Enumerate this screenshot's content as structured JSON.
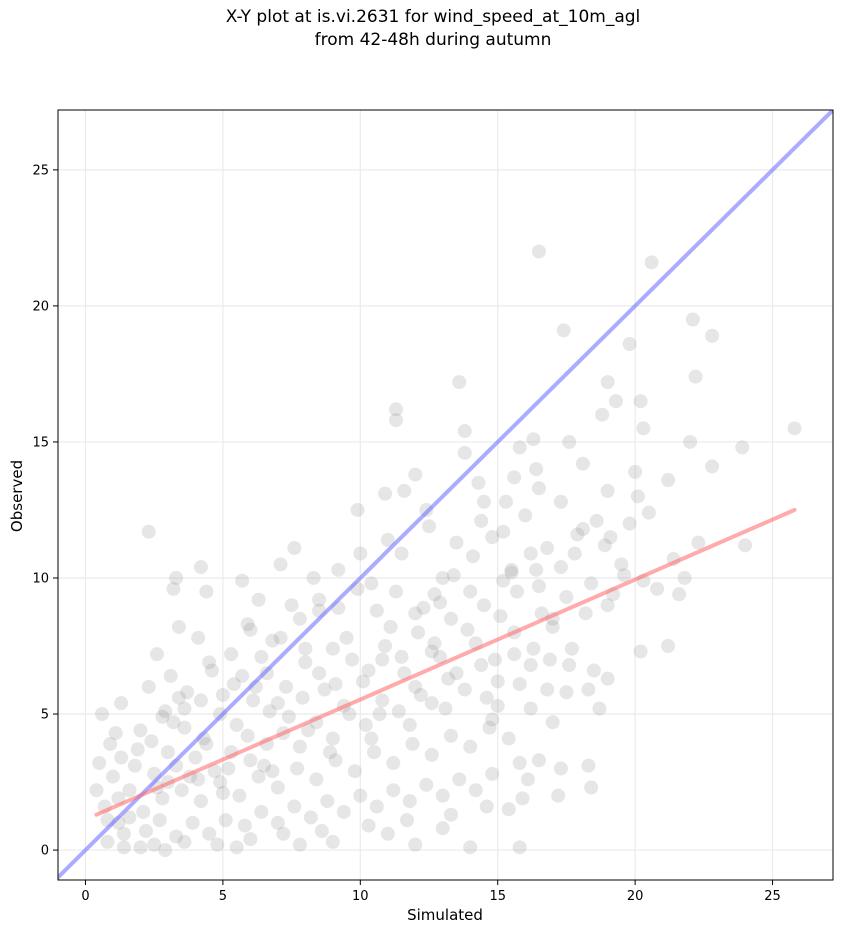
{
  "chart_data": {
    "type": "scatter",
    "title": "X-Y plot at is.vi.2631 for wind_speed_at_10m_agl",
    "subtitle": "from 42-48h during autumn",
    "xlabel": "Simulated",
    "ylabel": "Observed",
    "xlim": [
      -1,
      27.2
    ],
    "ylim": [
      -1.1,
      27.2
    ],
    "xticks": [
      0,
      5,
      10,
      15,
      20,
      25
    ],
    "yticks": [
      0,
      5,
      10,
      15,
      20,
      25
    ],
    "grid": true,
    "point_color": "#808080",
    "reference_line": {
      "slope": 1,
      "intercept": 0,
      "color": "#6666ff"
    },
    "fit_line": {
      "x": [
        0.4,
        25.8
      ],
      "y": [
        1.3,
        12.5
      ],
      "color": "#ff6666"
    },
    "points": [
      [
        16.5,
        22.0
      ],
      [
        20.6,
        21.6
      ],
      [
        17.4,
        19.1
      ],
      [
        22.1,
        19.5
      ],
      [
        22.8,
        18.9
      ],
      [
        19.8,
        18.6
      ],
      [
        19,
        17.2
      ],
      [
        22.2,
        17.4
      ],
      [
        13.6,
        17.2
      ],
      [
        11.3,
        16.2
      ],
      [
        11.3,
        15.8
      ],
      [
        20.2,
        16.5
      ],
      [
        19.3,
        16.5
      ],
      [
        18.8,
        16.0
      ],
      [
        25.8,
        15.5
      ],
      [
        15.8,
        14.8
      ],
      [
        13.8,
        15.4
      ],
      [
        20.3,
        15.5
      ],
      [
        22.0,
        15.0
      ],
      [
        17.6,
        15.0
      ],
      [
        16.3,
        15.1
      ],
      [
        23.9,
        14.8
      ],
      [
        13.8,
        14.6
      ],
      [
        22.8,
        14.1
      ],
      [
        18.1,
        14.2
      ],
      [
        16.4,
        14.0
      ],
      [
        12.0,
        13.8
      ],
      [
        20.0,
        13.9
      ],
      [
        21.2,
        13.6
      ],
      [
        14.3,
        13.5
      ],
      [
        15.6,
        13.7
      ],
      [
        11.6,
        13.2
      ],
      [
        16.5,
        13.3
      ],
      [
        10.9,
        13.1
      ],
      [
        20.1,
        13.0
      ],
      [
        19.0,
        13.2
      ],
      [
        14.5,
        12.8
      ],
      [
        15.3,
        12.8
      ],
      [
        17.3,
        12.8
      ],
      [
        18.6,
        12.1
      ],
      [
        9.9,
        12.5
      ],
      [
        20.5,
        12.4
      ],
      [
        12.4,
        12.5
      ],
      [
        2.3,
        11.7
      ],
      [
        19.1,
        11.5
      ],
      [
        24.0,
        11.2
      ],
      [
        22.3,
        11.3
      ],
      [
        7.6,
        11.1
      ],
      [
        18.1,
        11.8
      ],
      [
        11.5,
        10.9
      ],
      [
        16.2,
        10.9
      ],
      [
        21.4,
        10.7
      ],
      [
        7.1,
        10.5
      ],
      [
        8.3,
        10.0
      ],
      [
        4.2,
        10.4
      ],
      [
        3.3,
        10.0
      ],
      [
        9.2,
        10.3
      ],
      [
        15.5,
        10.3
      ],
      [
        17.3,
        10.4
      ],
      [
        19.5,
        10.5
      ],
      [
        5.7,
        9.9
      ],
      [
        10.4,
        9.8
      ],
      [
        3.2,
        9.6
      ],
      [
        4.4,
        9.5
      ],
      [
        21.6,
        9.4
      ],
      [
        6.3,
        9.2
      ],
      [
        12.9,
        9.1
      ],
      [
        19.0,
        9.0
      ],
      [
        8.5,
        8.8
      ],
      [
        17.0,
        8.5
      ],
      [
        3.4,
        8.2
      ],
      [
        4.1,
        7.8
      ],
      [
        5.9,
        8.3
      ],
      [
        21.2,
        7.5
      ],
      [
        20.2,
        7.3
      ],
      [
        2.6,
        7.2
      ],
      [
        16.9,
        7.0
      ],
      [
        8.0,
        7.4
      ],
      [
        4.5,
        6.9
      ],
      [
        17.6,
        6.8
      ],
      [
        18.5,
        6.6
      ],
      [
        19.0,
        6.3
      ],
      [
        3.1,
        6.4
      ],
      [
        2.3,
        6.0
      ],
      [
        5.4,
        6.1
      ],
      [
        16.8,
        5.9
      ],
      [
        17.5,
        5.8
      ],
      [
        18.3,
        5.9
      ],
      [
        4.2,
        5.5
      ],
      [
        1.3,
        5.4
      ],
      [
        3.6,
        5.2
      ],
      [
        15.0,
        5.3
      ],
      [
        18.7,
        5.2
      ],
      [
        0.6,
        5.0
      ],
      [
        16.2,
        5.2
      ],
      [
        17.0,
        4.7
      ],
      [
        3.2,
        4.7
      ],
      [
        14.8,
        4.8
      ],
      [
        1.1,
        4.3
      ],
      [
        0.9,
        3.9
      ],
      [
        0.5,
        3.2
      ],
      [
        0.4,
        2.2
      ],
      [
        0.7,
        1.6
      ],
      [
        1.2,
        1.0
      ],
      [
        0.8,
        0.3
      ],
      [
        1.4,
        0.1
      ],
      [
        2.0,
        0.1
      ],
      [
        2.9,
        0.0
      ],
      [
        5.5,
        0.1
      ],
      [
        7.8,
        0.2
      ],
      [
        9.0,
        0.3
      ],
      [
        12.0,
        0.2
      ],
      [
        14.0,
        0.1
      ],
      [
        15.8,
        0.1
      ],
      [
        13.0,
        0.8
      ],
      [
        11.0,
        0.6
      ],
      [
        16.1,
        2.6
      ],
      [
        17.2,
        2.0
      ],
      [
        17.3,
        3.0
      ],
      [
        18.3,
        3.1
      ],
      [
        18.4,
        2.3
      ],
      [
        15.8,
        3.2
      ],
      [
        16.5,
        3.3
      ],
      [
        1.6,
        2.2
      ],
      [
        2.5,
        2.8
      ],
      [
        3.3,
        3.1
      ],
      [
        4.0,
        3.4
      ],
      [
        4.7,
        2.9
      ],
      [
        5.3,
        3.6
      ],
      [
        6.0,
        3.3
      ],
      [
        6.6,
        3.9
      ],
      [
        7.2,
        4.3
      ],
      [
        7.8,
        3.8
      ],
      [
        8.4,
        4.7
      ],
      [
        9.0,
        4.1
      ],
      [
        9.6,
        5.0
      ],
      [
        10.2,
        4.6
      ],
      [
        10.8,
        5.5
      ],
      [
        11.4,
        5.1
      ],
      [
        12.0,
        6.0
      ],
      [
        12.6,
        5.4
      ],
      [
        13.2,
        6.3
      ],
      [
        13.8,
        5.9
      ],
      [
        14.4,
        6.8
      ],
      [
        15.0,
        6.2
      ],
      [
        15.6,
        7.2
      ],
      [
        16.2,
        6.8
      ],
      [
        2.1,
        1.4
      ],
      [
        2.8,
        1.9
      ],
      [
        3.5,
        2.2
      ],
      [
        4.2,
        1.8
      ],
      [
        4.9,
        2.5
      ],
      [
        5.6,
        2.0
      ],
      [
        6.3,
        2.7
      ],
      [
        7.0,
        2.3
      ],
      [
        7.7,
        3.0
      ],
      [
        8.4,
        2.6
      ],
      [
        9.1,
        3.3
      ],
      [
        9.8,
        2.9
      ],
      [
        10.5,
        3.6
      ],
      [
        11.2,
        3.2
      ],
      [
        11.9,
        3.9
      ],
      [
        12.6,
        3.5
      ],
      [
        13.3,
        4.2
      ],
      [
        14.0,
        3.8
      ],
      [
        14.7,
        4.5
      ],
      [
        15.4,
        4.1
      ],
      [
        1.8,
        3.1
      ],
      [
        2.4,
        4.0
      ],
      [
        3.0,
        3.6
      ],
      [
        3.6,
        4.5
      ],
      [
        4.3,
        4.1
      ],
      [
        4.9,
        5.0
      ],
      [
        5.5,
        4.6
      ],
      [
        6.1,
        5.5
      ],
      [
        6.7,
        5.1
      ],
      [
        7.3,
        6.0
      ],
      [
        7.9,
        5.6
      ],
      [
        8.5,
        6.5
      ],
      [
        9.1,
        6.1
      ],
      [
        9.7,
        7.0
      ],
      [
        10.3,
        6.6
      ],
      [
        10.9,
        7.5
      ],
      [
        11.5,
        7.1
      ],
      [
        12.1,
        8.0
      ],
      [
        12.7,
        7.6
      ],
      [
        13.3,
        8.5
      ],
      [
        13.9,
        8.1
      ],
      [
        14.5,
        9.0
      ],
      [
        15.1,
        8.6
      ],
      [
        15.7,
        9.5
      ],
      [
        1.2,
        1.9
      ],
      [
        1.6,
        1.2
      ],
      [
        2.2,
        0.7
      ],
      [
        2.7,
        1.1
      ],
      [
        3.3,
        0.5
      ],
      [
        3.9,
        1.0
      ],
      [
        4.5,
        0.6
      ],
      [
        5.1,
        1.1
      ],
      [
        5.8,
        0.9
      ],
      [
        6.4,
        1.4
      ],
      [
        7.0,
        1.0
      ],
      [
        7.6,
        1.6
      ],
      [
        8.2,
        1.2
      ],
      [
        8.8,
        1.8
      ],
      [
        9.4,
        1.4
      ],
      [
        10.0,
        2.0
      ],
      [
        10.6,
        1.6
      ],
      [
        11.2,
        2.2
      ],
      [
        11.8,
        1.8
      ],
      [
        12.4,
        2.4
      ],
      [
        13.0,
        2.0
      ],
      [
        13.6,
        2.6
      ],
      [
        14.2,
        2.2
      ],
      [
        14.8,
        2.8
      ],
      [
        15.4,
        1.5
      ],
      [
        5.0,
        5.7
      ],
      [
        5.7,
        6.4
      ],
      [
        6.4,
        7.1
      ],
      [
        7.1,
        7.8
      ],
      [
        7.8,
        8.5
      ],
      [
        8.5,
        9.2
      ],
      [
        9.2,
        8.9
      ],
      [
        9.9,
        9.6
      ],
      [
        10.6,
        8.8
      ],
      [
        11.3,
        9.5
      ],
      [
        12.0,
        8.7
      ],
      [
        12.7,
        9.4
      ],
      [
        13.4,
        10.1
      ],
      [
        14.1,
        10.8
      ],
      [
        14.8,
        11.5
      ],
      [
        15.5,
        10.2
      ],
      [
        2.9,
        5.1
      ],
      [
        3.7,
        5.8
      ],
      [
        4.6,
        6.6
      ],
      [
        5.3,
        7.2
      ],
      [
        6.0,
        8.1
      ],
      [
        6.8,
        7.7
      ],
      [
        7.5,
        9.0
      ],
      [
        10.0,
        10.9
      ],
      [
        11.0,
        11.4
      ],
      [
        12.5,
        11.9
      ],
      [
        13.5,
        11.3
      ],
      [
        14.4,
        12.1
      ],
      [
        15.2,
        11.7
      ],
      [
        16.0,
        12.3
      ],
      [
        16.8,
        11.1
      ],
      [
        17.8,
        10.9
      ],
      [
        18.4,
        9.8
      ],
      [
        19.6,
        10.1
      ],
      [
        20.8,
        9.6
      ],
      [
        1.0,
        2.7
      ],
      [
        1.9,
        3.7
      ],
      [
        2.6,
        2.3
      ],
      [
        3.8,
        2.7
      ],
      [
        4.4,
        3.9
      ],
      [
        5.2,
        3.0
      ],
      [
        5.9,
        4.2
      ],
      [
        6.5,
        3.1
      ],
      [
        7.4,
        4.9
      ],
      [
        8.1,
        4.4
      ],
      [
        8.7,
        5.9
      ],
      [
        9.4,
        5.3
      ],
      [
        10.1,
        6.2
      ],
      [
        10.7,
        5.0
      ],
      [
        11.6,
        6.5
      ],
      [
        12.2,
        5.7
      ],
      [
        12.9,
        7.1
      ],
      [
        13.5,
        6.5
      ],
      [
        14.2,
        7.6
      ],
      [
        14.9,
        7.0
      ],
      [
        15.6,
        8.0
      ],
      [
        16.3,
        7.4
      ],
      [
        17.0,
        8.2
      ],
      [
        17.7,
        7.4
      ],
      [
        1.4,
        0.6
      ],
      [
        2.5,
        0.2
      ],
      [
        3.6,
        0.3
      ],
      [
        4.8,
        0.2
      ],
      [
        6.0,
        0.4
      ],
      [
        7.2,
        0.6
      ],
      [
        8.6,
        0.7
      ],
      [
        10.3,
        0.9
      ],
      [
        11.7,
        1.1
      ],
      [
        13.3,
        1.3
      ],
      [
        14.6,
        1.6
      ],
      [
        15.9,
        1.9
      ],
      [
        6.2,
        6.0
      ],
      [
        8.0,
        6.9
      ],
      [
        9.5,
        7.8
      ],
      [
        11.1,
        8.2
      ],
      [
        12.3,
        8.9
      ],
      [
        13.0,
        10.0
      ],
      [
        14.0,
        9.5
      ],
      [
        15.2,
        9.9
      ],
      [
        16.5,
        9.7
      ],
      [
        3.0,
        2.5
      ],
      [
        4.1,
        2.6
      ],
      [
        5.0,
        2.1
      ],
      [
        6.8,
        2.9
      ],
      [
        8.9,
        3.6
      ],
      [
        10.4,
        4.1
      ],
      [
        11.8,
        4.6
      ],
      [
        13.1,
        5.2
      ],
      [
        14.6,
        5.6
      ],
      [
        15.8,
        6.1
      ],
      [
        0.8,
        1.1
      ],
      [
        1.3,
        3.4
      ],
      [
        2.0,
        4.4
      ],
      [
        2.8,
        4.9
      ],
      [
        3.4,
        5.6
      ],
      [
        6.6,
        6.5
      ],
      [
        7.0,
        5.4
      ],
      [
        9.0,
        7.4
      ],
      [
        10.8,
        7.0
      ],
      [
        12.6,
        7.3
      ],
      [
        16.6,
        8.7
      ],
      [
        17.5,
        9.3
      ],
      [
        18.2,
        8.7
      ],
      [
        19.2,
        9.4
      ],
      [
        20.3,
        9.9
      ],
      [
        21.8,
        10.0
      ],
      [
        19.8,
        12.0
      ],
      [
        18.9,
        11.2
      ],
      [
        17.9,
        11.6
      ],
      [
        16.4,
        10.3
      ]
    ]
  }
}
